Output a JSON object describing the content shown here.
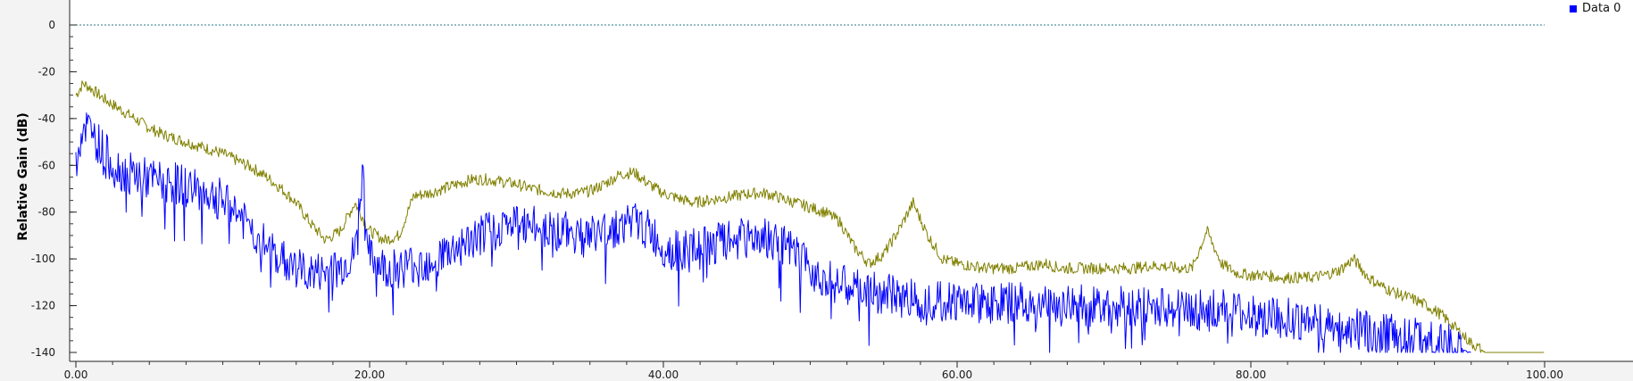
{
  "chart_data": {
    "type": "line",
    "ylabel": "Relative Gain (dB)",
    "xlabel": "",
    "xlim": [
      0,
      100
    ],
    "ylim": [
      -140,
      0
    ],
    "x_ticks": [
      0,
      20,
      40,
      60,
      80,
      100
    ],
    "x_tick_labels": [
      "0.00",
      "20.00",
      "40.00",
      "60.00",
      "80.00",
      "100.00"
    ],
    "y_ticks": [
      0,
      -20,
      -40,
      -60,
      -80,
      -100,
      -120,
      -140
    ],
    "y_tick_labels": [
      "0",
      "-20",
      "-40",
      "-60",
      "-80",
      "-100",
      "-120",
      "-140"
    ],
    "reference_line": {
      "y": 0,
      "color": "#2a7a8a",
      "style": "dotted"
    },
    "legend": {
      "placement": "top-right",
      "entries": [
        {
          "label": "Data 0",
          "color": "#0000ff"
        }
      ]
    },
    "series": [
      {
        "name": "Data 0",
        "color": "#0000ff",
        "x": [
          0,
          0.5,
          1,
          2,
          3,
          4,
          5,
          6,
          7,
          8,
          9,
          10,
          11,
          12,
          13,
          14,
          15,
          16,
          17,
          18,
          19,
          19.5,
          20,
          21,
          22,
          23,
          24,
          25,
          26,
          27,
          28,
          29,
          30,
          31,
          32,
          33,
          34,
          35,
          36,
          37,
          38,
          39,
          40,
          41,
          42,
          43,
          44,
          45,
          46,
          47,
          48,
          49,
          50,
          51,
          52,
          53,
          54,
          55,
          56,
          57,
          58,
          59,
          60,
          61,
          62,
          63,
          64,
          65,
          66,
          67,
          68,
          69,
          70,
          71,
          72,
          73,
          74,
          75,
          76,
          77,
          78,
          79,
          80,
          81,
          82,
          83,
          84,
          85,
          86,
          87,
          88,
          89,
          90,
          91,
          92,
          93,
          94,
          95
        ],
        "values": [
          -58,
          -42,
          -45,
          -55,
          -62,
          -64,
          -66,
          -67,
          -68,
          -70,
          -72,
          -75,
          -80,
          -88,
          -95,
          -100,
          -104,
          -106,
          -106,
          -104,
          -98,
          -62,
          -100,
          -104,
          -104,
          -102,
          -101,
          -98,
          -95,
          -92,
          -89,
          -86,
          -85,
          -86,
          -87,
          -88,
          -89,
          -90,
          -88,
          -86,
          -84,
          -88,
          -95,
          -97,
          -96,
          -95,
          -93,
          -92,
          -91,
          -90,
          -94,
          -98,
          -104,
          -108,
          -111,
          -113,
          -114,
          -115,
          -116,
          -117,
          -117,
          -118,
          -118,
          -118,
          -119,
          -119,
          -119,
          -119,
          -120,
          -120,
          -120,
          -120,
          -120,
          -120,
          -121,
          -121,
          -121,
          -121,
          -122,
          -122,
          -122,
          -123,
          -124,
          -125,
          -125,
          -126,
          -127,
          -128,
          -129,
          -130,
          -131,
          -132,
          -133,
          -134,
          -135,
          -136,
          -138,
          -140
        ]
      },
      {
        "color": "#808000",
        "x": [
          0,
          0.5,
          1,
          2,
          3,
          4,
          5,
          6,
          7,
          8,
          9,
          10,
          11,
          12,
          13,
          14,
          15,
          16,
          17,
          18,
          19,
          20,
          21,
          22,
          23,
          24,
          25,
          26,
          27,
          28,
          29,
          30,
          31,
          32,
          33,
          34,
          35,
          36,
          37,
          38,
          39,
          40,
          41,
          42,
          43,
          44,
          45,
          46,
          47,
          48,
          49,
          50,
          51,
          52,
          53,
          54,
          55,
          56,
          57,
          58,
          59,
          60,
          61,
          62,
          63,
          64,
          65,
          66,
          67,
          68,
          69,
          70,
          71,
          72,
          73,
          74,
          75,
          76,
          77,
          78,
          79,
          80,
          81,
          82,
          83,
          84,
          85,
          86,
          87,
          88,
          89,
          90,
          91,
          92,
          93,
          94,
          95,
          96,
          97,
          98,
          99,
          100
        ],
        "values": [
          -30,
          -25,
          -27,
          -32,
          -36,
          -40,
          -44,
          -47,
          -49,
          -51,
          -53,
          -55,
          -58,
          -61,
          -65,
          -70,
          -76,
          -85,
          -92,
          -88,
          -76,
          -88,
          -92,
          -90,
          -73,
          -72,
          -70,
          -68,
          -66,
          -66,
          -67,
          -68,
          -70,
          -71,
          -72,
          -72,
          -71,
          -68,
          -64,
          -63,
          -68,
          -72,
          -74,
          -76,
          -75,
          -74,
          -73,
          -72,
          -72,
          -74,
          -76,
          -78,
          -80,
          -84,
          -95,
          -102,
          -98,
          -88,
          -76,
          -90,
          -100,
          -102,
          -103,
          -104,
          -104,
          -104,
          -103,
          -102,
          -104,
          -104,
          -104,
          -104,
          -104,
          -104,
          -103,
          -103,
          -104,
          -104,
          -88,
          -102,
          -106,
          -107,
          -107,
          -108,
          -108,
          -108,
          -107,
          -105,
          -100,
          -108,
          -112,
          -115,
          -117,
          -120,
          -124,
          -130,
          -136,
          -140,
          -140,
          -140,
          -140,
          -140
        ]
      }
    ]
  }
}
